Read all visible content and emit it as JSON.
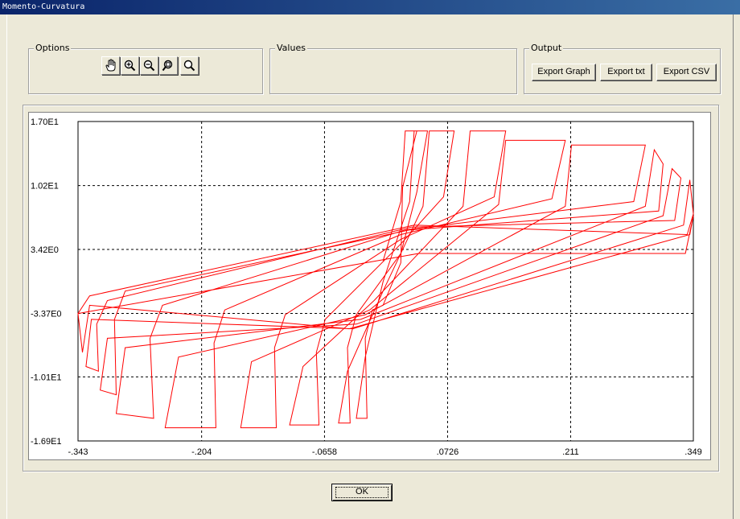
{
  "window": {
    "title": "Momento-Curvatura"
  },
  "options": {
    "label": "Options",
    "tools": [
      {
        "name": "pan-hand-icon"
      },
      {
        "name": "zoom-in-icon"
      },
      {
        "name": "zoom-out-icon"
      },
      {
        "name": "zoom-extents-icon"
      },
      {
        "name": "zoom-window-icon"
      }
    ]
  },
  "values": {
    "label": "Values"
  },
  "output": {
    "label": "Output",
    "export_graph": "Export Graph",
    "export_txt": "Export txt",
    "export_csv": "Export CSV"
  },
  "ok_button": "OK",
  "colors": {
    "series": "#ff0000",
    "grid": "#000000",
    "background": "#ece9d8"
  },
  "chart_data": {
    "type": "line",
    "title": "",
    "xlabel": "",
    "ylabel": "",
    "xlim": [
      -0.343,
      0.349
    ],
    "ylim": [
      -16.9,
      17.0
    ],
    "x_tick_labels": [
      "-.343",
      "-.204",
      "-.0658",
      ".0726",
      ".211",
      ".349"
    ],
    "x_ticks": [
      -0.343,
      -0.204,
      -0.0658,
      0.0726,
      0.211,
      0.349
    ],
    "y_tick_labels": [
      "1.70E1",
      "1.02E1",
      "3.42E0",
      "-3.37E0",
      "-1.01E1",
      "-1.69E1"
    ],
    "y_ticks": [
      17.0,
      10.2,
      3.42,
      -3.37,
      -10.1,
      -16.9
    ],
    "grid": true,
    "grid_style": "dashed",
    "series": [
      {
        "color": "#ff0000",
        "x": [
          0.0,
          0.02,
          0.025,
          0.005,
          -0.012,
          -0.018,
          0.0,
          0.03,
          0.035,
          0.01,
          -0.03,
          -0.037,
          -0.005,
          0.045,
          0.052,
          0.012,
          -0.065,
          -0.072,
          -0.01,
          0.09,
          0.098,
          0.015,
          -0.11,
          -0.12,
          -0.015,
          0.13,
          0.138,
          0.02,
          -0.178,
          -0.188,
          -0.02,
          0.205,
          0.212,
          0.025,
          -0.248,
          -0.258,
          -0.025,
          0.295,
          0.305,
          0.03,
          -0.29,
          -0.3,
          -0.03,
          0.315,
          0.325,
          0.032,
          -0.31,
          -0.32,
          -0.034,
          0.338,
          0.347,
          0.035,
          -0.33,
          -0.34,
          -0.038,
          0.345,
          0.349,
          0.04,
          -0.343
        ],
        "y": [
          2.2,
          8.5,
          16.0,
          10.0,
          -3.0,
          -14.5,
          -8.0,
          8.5,
          16.0,
          11.0,
          -3.5,
          -15.0,
          -9.5,
          8.0,
          16.0,
          12.0,
          -4.0,
          -15.2,
          -9.0,
          8.0,
          16.0,
          13.0,
          -3.5,
          -15.5,
          -8.5,
          8.2,
          15.0,
          14.0,
          -3.0,
          -15.5,
          -8.0,
          8.0,
          14.5,
          13.5,
          -2.5,
          -14.5,
          -7.0,
          8.0,
          14.5,
          12.0,
          -1.0,
          -12.0,
          -6.0,
          7.0,
          13.0,
          11.0,
          -2.0,
          -9.5,
          -4.0,
          6.0,
          11.0,
          9.0,
          -1.5,
          -7.5,
          -2.5,
          5.0,
          9.5,
          8.0,
          -3.37
        ],
        "path": [
          [
            0.0,
            2.2
          ],
          [
            0.02,
            8.5
          ],
          [
            0.025,
            16.0
          ],
          [
            0.038,
            16.0
          ],
          [
            0.022,
            10.0
          ],
          [
            0.02,
            2.0
          ],
          [
            0.0,
            -2.5
          ],
          [
            -0.012,
            -3.0
          ],
          [
            -0.02,
            -6.0
          ],
          [
            -0.018,
            -14.5
          ],
          [
            -0.03,
            -14.5
          ],
          [
            -0.02,
            -8.0
          ],
          [
            0.0,
            0.0
          ],
          [
            0.03,
            8.5
          ],
          [
            0.035,
            16.0
          ],
          [
            0.05,
            16.0
          ],
          [
            0.038,
            9.5
          ],
          [
            0.02,
            3.0
          ],
          [
            -0.03,
            -3.5
          ],
          [
            -0.04,
            -7.0
          ],
          [
            -0.037,
            -15.0
          ],
          [
            -0.05,
            -15.0
          ],
          [
            -0.04,
            -9.5
          ],
          [
            0.0,
            -1.0
          ],
          [
            0.045,
            8.0
          ],
          [
            0.052,
            16.0
          ],
          [
            0.08,
            16.0
          ],
          [
            0.068,
            9.0
          ],
          [
            0.02,
            4.0
          ],
          [
            -0.065,
            -4.0
          ],
          [
            -0.075,
            -7.5
          ],
          [
            -0.072,
            -15.2
          ],
          [
            -0.105,
            -15.2
          ],
          [
            -0.09,
            -9.0
          ],
          [
            -0.01,
            -2.0
          ],
          [
            0.09,
            8.0
          ],
          [
            0.098,
            16.0
          ],
          [
            0.138,
            16.0
          ],
          [
            0.125,
            9.0
          ],
          [
            0.02,
            4.5
          ],
          [
            -0.11,
            -3.5
          ],
          [
            -0.122,
            -7.0
          ],
          [
            -0.12,
            -15.5
          ],
          [
            -0.16,
            -15.5
          ],
          [
            -0.148,
            -8.5
          ],
          [
            -0.015,
            -3.0
          ],
          [
            0.13,
            8.2
          ],
          [
            0.138,
            15.0
          ],
          [
            0.205,
            15.0
          ],
          [
            0.19,
            8.8
          ],
          [
            0.02,
            5.0
          ],
          [
            -0.178,
            -3.0
          ],
          [
            -0.19,
            -6.5
          ],
          [
            -0.188,
            -15.5
          ],
          [
            -0.245,
            -15.5
          ],
          [
            -0.23,
            -8.0
          ],
          [
            -0.02,
            -3.5
          ],
          [
            0.205,
            8.0
          ],
          [
            0.212,
            14.5
          ],
          [
            0.295,
            14.5
          ],
          [
            0.282,
            8.5
          ],
          [
            0.025,
            5.5
          ],
          [
            -0.248,
            -2.5
          ],
          [
            -0.262,
            -6.0
          ],
          [
            -0.258,
            -14.5
          ],
          [
            -0.3,
            -14.0
          ],
          [
            -0.29,
            -7.0
          ],
          [
            -0.025,
            -4.0
          ],
          [
            0.295,
            8.0
          ],
          [
            0.305,
            14.0
          ],
          [
            0.315,
            12.5
          ],
          [
            0.31,
            7.5
          ],
          [
            0.03,
            5.5
          ],
          [
            -0.29,
            -1.0
          ],
          [
            -0.302,
            -4.0
          ],
          [
            -0.3,
            -12.0
          ],
          [
            -0.318,
            -11.5
          ],
          [
            -0.31,
            -6.0
          ],
          [
            -0.03,
            -4.5
          ],
          [
            0.315,
            7.0
          ],
          [
            0.325,
            12.0
          ],
          [
            0.335,
            11.0
          ],
          [
            0.328,
            6.5
          ],
          [
            0.032,
            5.8
          ],
          [
            -0.31,
            -2.0
          ],
          [
            -0.322,
            -4.5
          ],
          [
            -0.32,
            -9.5
          ],
          [
            -0.334,
            -9.0
          ],
          [
            -0.328,
            -4.0
          ],
          [
            -0.034,
            -5.0
          ],
          [
            0.338,
            6.0
          ],
          [
            0.345,
            10.8
          ],
          [
            0.349,
            7.2
          ],
          [
            0.342,
            5.0
          ],
          [
            0.035,
            6.0
          ],
          [
            -0.33,
            -1.5
          ],
          [
            -0.343,
            -3.37
          ],
          [
            -0.338,
            -7.5
          ],
          [
            -0.33,
            -2.5
          ],
          [
            -0.038,
            -5.0
          ],
          [
            0.345,
            5.0
          ],
          [
            0.349,
            7.0
          ],
          [
            0.34,
            3.0
          ],
          [
            0.04,
            3.0
          ],
          [
            -0.343,
            -3.37
          ]
        ]
      }
    ]
  }
}
